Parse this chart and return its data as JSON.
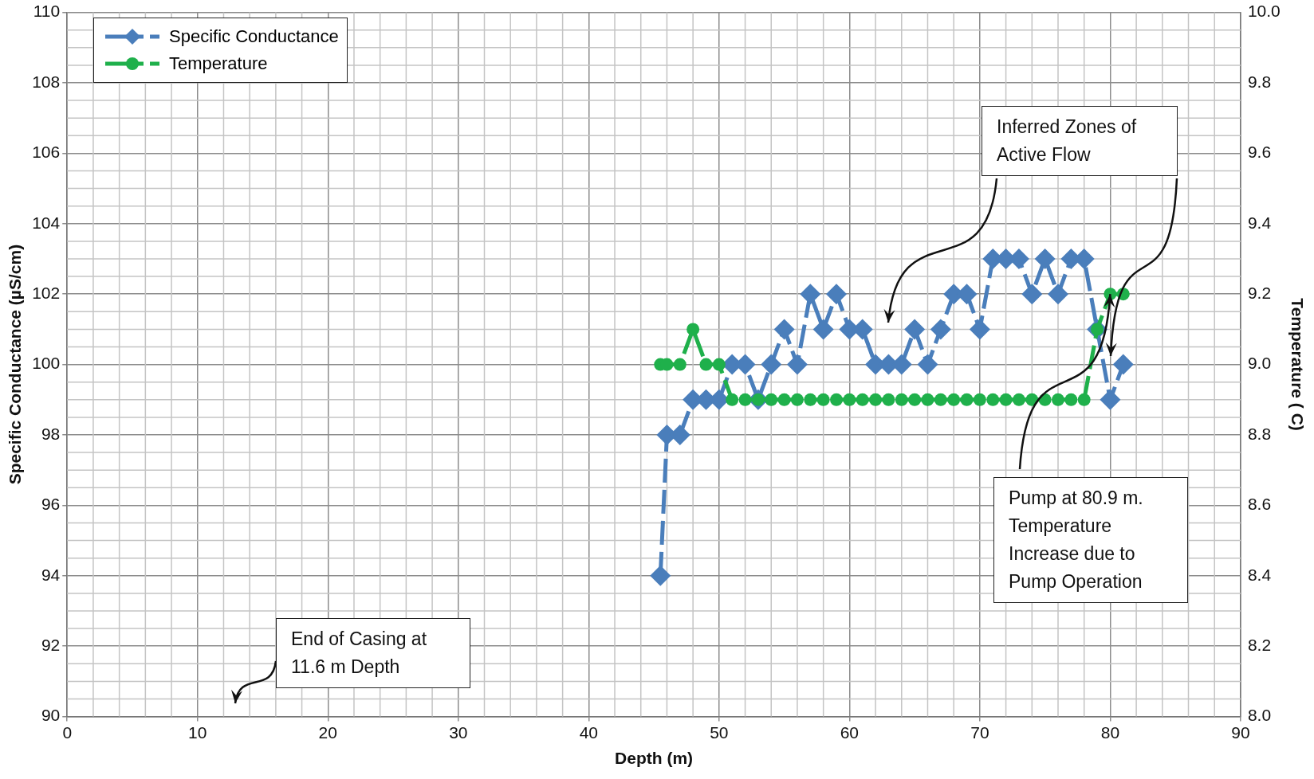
{
  "chart_data": {
    "type": "line",
    "xlabel": "Depth (m)",
    "ylabel": "Specific Conductance (µS/cm)",
    "y2label": "Temperature ( C)",
    "xlim": [
      0,
      90
    ],
    "xticks": [
      0,
      10,
      20,
      30,
      40,
      50,
      60,
      70,
      80,
      90
    ],
    "ylim": [
      90,
      110
    ],
    "yticks": [
      90,
      92,
      94,
      96,
      98,
      100,
      102,
      104,
      106,
      108,
      110
    ],
    "y2lim": [
      8.0,
      10.0
    ],
    "y2ticks": [
      {
        "value": 8.0,
        "label": "8.0"
      },
      {
        "value": 8.2,
        "label": "8.2"
      },
      {
        "value": 8.4,
        "label": "8.4"
      },
      {
        "value": 8.6,
        "label": "8.6"
      },
      {
        "value": 8.8,
        "label": "8.8"
      },
      {
        "value": 9.0,
        "label": "9.0"
      },
      {
        "value": 9.2,
        "label": "9.2"
      },
      {
        "value": 9.4,
        "label": "9.4"
      },
      {
        "value": 9.6,
        "label": "9.6"
      },
      {
        "value": 9.8,
        "label": "9.8"
      },
      {
        "value": 10.0,
        "label": "10.0"
      }
    ],
    "grid": true,
    "legend": "top left",
    "line_style": "dashed",
    "series": [
      {
        "name": "Specific Conductance",
        "color": "#4a7ebb",
        "marker": "diamond",
        "x": [
          45.5,
          46,
          47,
          48,
          49,
          50,
          51,
          52,
          53,
          54,
          55,
          56,
          57,
          58,
          59,
          60,
          61,
          62,
          63,
          64,
          65,
          66,
          67,
          68,
          69,
          70,
          71,
          72,
          73,
          74,
          75,
          76,
          77,
          78,
          79,
          80,
          81
        ],
        "values": [
          94,
          98,
          98,
          99,
          99,
          99,
          100,
          100,
          99,
          100,
          101,
          100,
          102,
          101,
          102,
          101,
          101,
          100,
          100,
          100,
          101,
          100,
          101,
          102,
          102,
          101,
          103,
          103,
          103,
          102,
          103,
          102,
          103,
          103,
          101,
          99,
          100
        ]
      },
      {
        "name": "Temperature",
        "color": "#1fb04b",
        "marker": "circle",
        "axis": "y2",
        "x": [
          45.5,
          46,
          47,
          48,
          49,
          50,
          51,
          52,
          53,
          54,
          55,
          56,
          57,
          58,
          59,
          60,
          61,
          62,
          63,
          64,
          65,
          66,
          67,
          68,
          69,
          70,
          71,
          72,
          73,
          74,
          75,
          76,
          77,
          78,
          79,
          80,
          81
        ],
        "values": [
          9.0,
          9.0,
          9.0,
          9.1,
          9.0,
          9.0,
          8.9,
          8.9,
          8.9,
          8.9,
          8.9,
          8.9,
          8.9,
          8.9,
          8.9,
          8.9,
          8.9,
          8.9,
          8.9,
          8.9,
          8.9,
          8.9,
          8.9,
          8.9,
          8.9,
          8.9,
          8.9,
          8.9,
          8.9,
          8.9,
          8.9,
          8.9,
          8.9,
          8.9,
          9.1,
          9.2,
          9.2
        ]
      }
    ],
    "annotations": [
      "Inferred Zones of Active Flow",
      {
        "text": "Pump at 80.9 m. Temperature Increase due to Pump Operation",
        "x": 80,
        "y": 102
      },
      "End of Casing at 11.6 m Depth"
    ]
  }
}
